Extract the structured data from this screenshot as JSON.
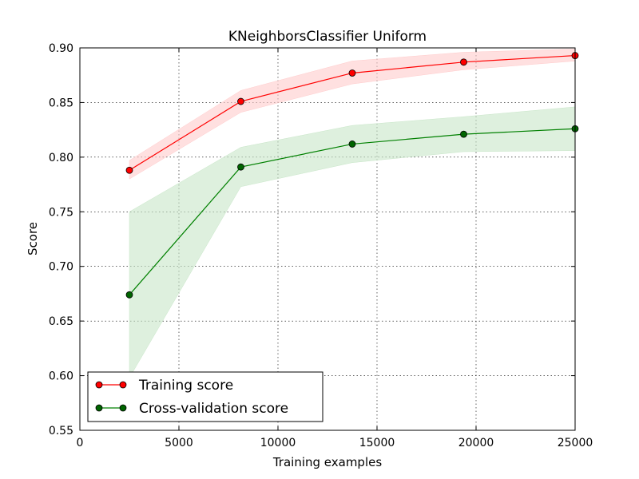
{
  "chart_data": {
    "type": "line",
    "title": "KNeighborsClassifier Uniform",
    "xlabel": "Training examples",
    "ylabel": "Score",
    "xlim": [
      0,
      25000
    ],
    "ylim": [
      0.55,
      0.9
    ],
    "xticks": [
      0,
      5000,
      10000,
      15000,
      20000,
      25000
    ],
    "yticks": [
      0.55,
      0.6,
      0.65,
      0.7,
      0.75,
      0.8,
      0.85,
      0.9
    ],
    "grid": true,
    "legend_position": "lower-left",
    "x": [
      2500,
      8125,
      13750,
      19375,
      25000
    ],
    "series": [
      {
        "name": "Training score",
        "color": "#ff0000",
        "marker_fill": "#ff0000",
        "band_color": "#ffcccc",
        "values": [
          0.788,
          0.851,
          0.877,
          0.887,
          0.893
        ],
        "lower": [
          0.78,
          0.841,
          0.867,
          0.88,
          0.888
        ],
        "upper": [
          0.797,
          0.861,
          0.888,
          0.896,
          0.899
        ]
      },
      {
        "name": "Cross-validation score",
        "color": "#008000",
        "marker_fill": "#006400",
        "band_color": "#c8e6c8",
        "values": [
          0.674,
          0.791,
          0.812,
          0.821,
          0.826
        ],
        "lower": [
          0.598,
          0.773,
          0.795,
          0.805,
          0.806
        ],
        "upper": [
          0.75,
          0.809,
          0.829,
          0.837,
          0.846
        ]
      }
    ]
  }
}
